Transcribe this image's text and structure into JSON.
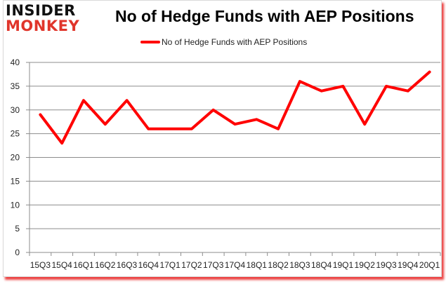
{
  "logo": {
    "line1": "INSIDER",
    "line2": "MONKEY"
  },
  "chart_data": {
    "type": "line",
    "title": "No of Hedge Funds with AEP Positions",
    "xlabel": "",
    "ylabel": "",
    "categories": [
      "15Q3",
      "15Q4",
      "16Q1",
      "16Q2",
      "16Q3",
      "16Q4",
      "17Q1",
      "17Q2",
      "17Q3",
      "17Q4",
      "18Q1",
      "18Q2",
      "18Q3",
      "18Q4",
      "19Q1",
      "19Q2",
      "19Q3",
      "19Q4",
      "20Q1"
    ],
    "series": [
      {
        "name": "No of Hedge Funds with AEP Positions",
        "color": "#ff0000",
        "values": [
          29,
          23,
          32,
          27,
          32,
          26,
          26,
          26,
          30,
          27,
          28,
          26,
          36,
          34,
          35,
          27,
          35,
          34,
          38
        ]
      }
    ],
    "ylim": [
      0,
      40
    ],
    "yticks": [
      0,
      5,
      10,
      15,
      20,
      25,
      30,
      35,
      40
    ],
    "grid": true,
    "legend_position": "top"
  },
  "colors": {
    "line": "#ff0000",
    "grid": "#8c8c8c",
    "logo_red": "#e0352b"
  }
}
